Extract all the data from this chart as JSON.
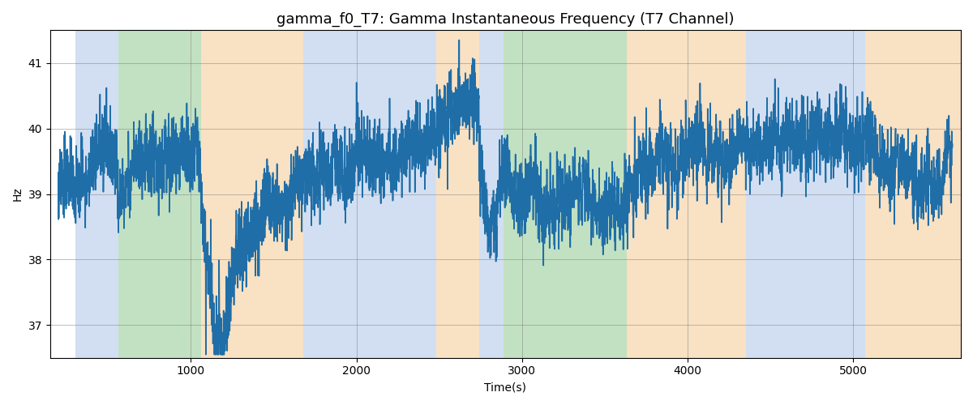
{
  "title": "gamma_f0_T7: Gamma Instantaneous Frequency (T7 Channel)",
  "xlabel": "Time(s)",
  "ylabel": "Hz",
  "ylim": [
    36.5,
    41.5
  ],
  "xlim": [
    150,
    5650
  ],
  "yticks": [
    37,
    38,
    39,
    40,
    41
  ],
  "xticks": [
    1000,
    2000,
    3000,
    4000,
    5000
  ],
  "line_color": "#1f6ea8",
  "line_width": 1.2,
  "bg_color": "#ffffff",
  "bands": [
    {
      "xstart": 300,
      "xend": 560,
      "color": "#aec6e8",
      "alpha": 0.55
    },
    {
      "xstart": 560,
      "xend": 1060,
      "color": "#90c990",
      "alpha": 0.55
    },
    {
      "xstart": 1060,
      "xend": 1680,
      "color": "#f5c992",
      "alpha": 0.55
    },
    {
      "xstart": 1680,
      "xend": 2480,
      "color": "#aec6e8",
      "alpha": 0.55
    },
    {
      "xstart": 2480,
      "xend": 2740,
      "color": "#f5c992",
      "alpha": 0.55
    },
    {
      "xstart": 2740,
      "xend": 2890,
      "color": "#aec6e8",
      "alpha": 0.55
    },
    {
      "xstart": 2890,
      "xend": 3090,
      "color": "#90c990",
      "alpha": 0.55
    },
    {
      "xstart": 3090,
      "xend": 3630,
      "color": "#90c990",
      "alpha": 0.55
    },
    {
      "xstart": 3630,
      "xend": 4350,
      "color": "#f5c992",
      "alpha": 0.55
    },
    {
      "xstart": 4350,
      "xend": 5070,
      "color": "#aec6e8",
      "alpha": 0.55
    },
    {
      "xstart": 5070,
      "xend": 5650,
      "color": "#f5c992",
      "alpha": 0.55
    }
  ],
  "figsize": [
    12.0,
    5.0
  ],
  "dpi": 100,
  "title_fontsize": 13,
  "seed": 12345,
  "t_start": 200,
  "t_end": 5600,
  "base_freq": 39.5,
  "noise_std": 0.28,
  "rw_step": 0.04
}
